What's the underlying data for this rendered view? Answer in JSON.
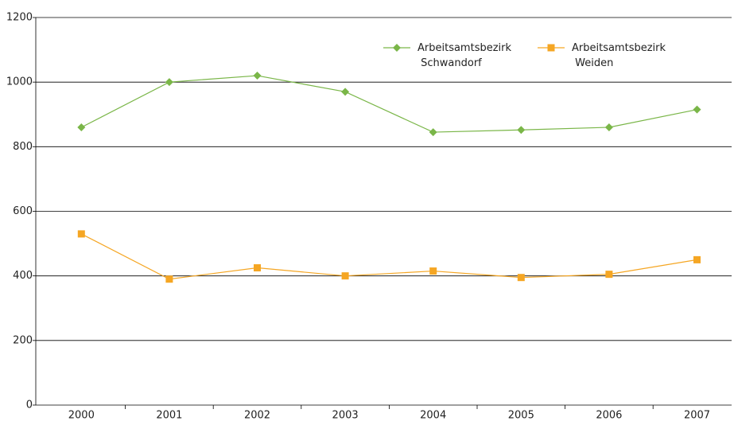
{
  "chart_data": {
    "type": "line",
    "categories": [
      "2000",
      "2001",
      "2002",
      "2003",
      "2004",
      "2005",
      "2006",
      "2007"
    ],
    "series": [
      {
        "name": "Arbeitsamtsbezirk Schwandorf",
        "color": "#7ab648",
        "marker": "diamond",
        "values": [
          860,
          1000,
          1020,
          970,
          845,
          852,
          860,
          915
        ]
      },
      {
        "name": "Arbeitsamtsbezirk Weiden",
        "color": "#f5a623",
        "marker": "square",
        "values": [
          530,
          390,
          425,
          400,
          415,
          395,
          405,
          450
        ]
      }
    ],
    "ylim": [
      0,
      1200
    ],
    "yticks": [
      0,
      200,
      400,
      600,
      800,
      1000,
      1200
    ],
    "grid": true,
    "legend": "top-right"
  }
}
